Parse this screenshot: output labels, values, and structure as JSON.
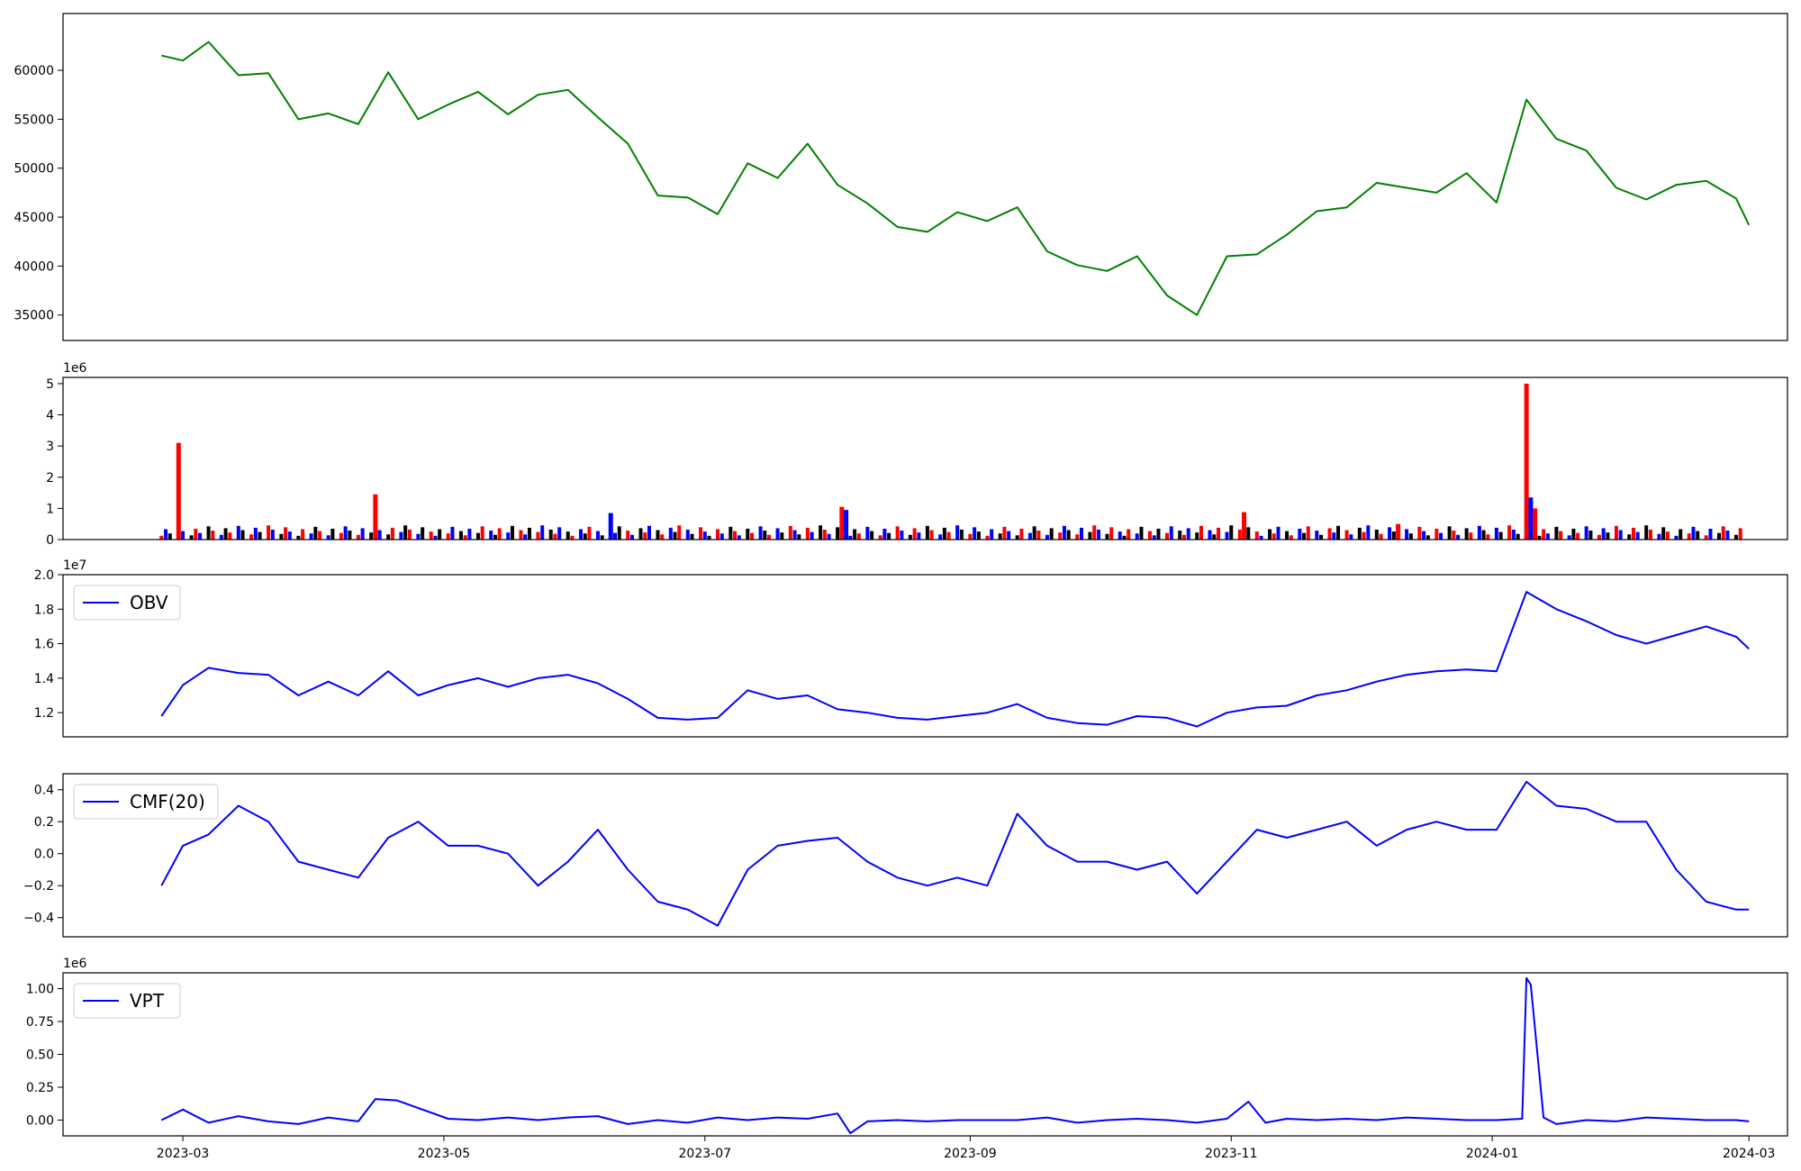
{
  "chart_data": [
    {
      "type": "line",
      "panel": "price",
      "color": "#008000",
      "yticks": [
        35000,
        40000,
        45000,
        50000,
        55000,
        60000
      ],
      "ylim": [
        32400,
        65800
      ],
      "xlim": [
        "2023-02-01",
        "2024-03-10"
      ],
      "x": [
        "2023-02-24",
        "2023-03-01",
        "2023-03-07",
        "2023-03-14",
        "2023-03-21",
        "2023-03-28",
        "2023-04-04",
        "2023-04-11",
        "2023-04-18",
        "2023-04-25",
        "2023-05-02",
        "2023-05-09",
        "2023-05-16",
        "2023-05-23",
        "2023-05-30",
        "2023-06-06",
        "2023-06-13",
        "2023-06-20",
        "2023-06-27",
        "2023-07-04",
        "2023-07-11",
        "2023-07-18",
        "2023-07-25",
        "2023-08-01",
        "2023-08-08",
        "2023-08-15",
        "2023-08-22",
        "2023-08-29",
        "2023-09-05",
        "2023-09-12",
        "2023-09-19",
        "2023-09-26",
        "2023-10-03",
        "2023-10-10",
        "2023-10-17",
        "2023-10-24",
        "2023-10-31",
        "2023-11-07",
        "2023-11-14",
        "2023-11-21",
        "2023-11-28",
        "2023-12-05",
        "2023-12-12",
        "2023-12-19",
        "2023-12-26",
        "2024-01-02",
        "2024-01-09",
        "2024-01-16",
        "2024-01-23",
        "2024-01-30",
        "2024-02-06",
        "2024-02-13",
        "2024-02-20",
        "2024-02-27",
        "2024-03-01"
      ],
      "values": [
        61500,
        61000,
        62900,
        59500,
        59700,
        55000,
        55600,
        54500,
        59800,
        55000,
        56500,
        57800,
        55500,
        57500,
        58000,
        55200,
        52500,
        47200,
        47000,
        45300,
        50500,
        49000,
        52500,
        48300,
        46400,
        44000,
        43500,
        45500,
        44600,
        46000,
        41500,
        40100,
        39500,
        41000,
        37000,
        35000,
        41000,
        41200,
        43200,
        45600,
        46000,
        48500,
        48000,
        47500,
        49500,
        46500,
        57000,
        53000,
        51800,
        48000,
        46800,
        48300,
        48700,
        46900,
        44200
      ]
    },
    {
      "type": "bar",
      "panel": "volume",
      "scale_label": "1e6",
      "colors": [
        "#ff0000",
        "#0000ff",
        "#000000"
      ],
      "yticks": [
        0,
        1,
        2,
        3,
        4,
        5
      ],
      "ylim": [
        0,
        5.2
      ],
      "note_values_in_millions": true,
      "x": [
        "2023-02-28",
        "2023-04-15",
        "2023-06-09",
        "2023-08-02",
        "2023-08-03",
        "2023-11-04",
        "2023-12-10",
        "2024-01-09",
        "2024-01-10",
        "2024-01-11"
      ],
      "values": [
        3.1,
        1.45,
        0.85,
        1.05,
        0.95,
        0.88,
        0.5,
        5.0,
        1.35,
        1.0
      ],
      "bar_colors": [
        "#ff0000",
        "#ff0000",
        "#0000ff",
        "#ff0000",
        "#0000ff",
        "#ff0000",
        "#ff0000",
        "#ff0000",
        "#0000ff",
        "#ff0000"
      ]
    },
    {
      "type": "line",
      "panel": "obv",
      "scale_label": "1e7",
      "legend": "OBV",
      "color": "#0000ff",
      "yticks": [
        1.2,
        1.4,
        1.6,
        1.8,
        2.0
      ],
      "yticklabels": [
        "1.2",
        "1.4",
        "1.6",
        "1.8",
        "2.0"
      ],
      "ylim": [
        1.06,
        2.0
      ],
      "x": [
        "2023-02-24",
        "2023-03-01",
        "2023-03-07",
        "2023-03-14",
        "2023-03-21",
        "2023-03-28",
        "2023-04-04",
        "2023-04-11",
        "2023-04-18",
        "2023-04-25",
        "2023-05-02",
        "2023-05-09",
        "2023-05-16",
        "2023-05-23",
        "2023-05-30",
        "2023-06-06",
        "2023-06-13",
        "2023-06-20",
        "2023-06-27",
        "2023-07-04",
        "2023-07-11",
        "2023-07-18",
        "2023-07-25",
        "2023-08-01",
        "2023-08-08",
        "2023-08-15",
        "2023-08-22",
        "2023-08-29",
        "2023-09-05",
        "2023-09-12",
        "2023-09-19",
        "2023-09-26",
        "2023-10-03",
        "2023-10-10",
        "2023-10-17",
        "2023-10-24",
        "2023-10-31",
        "2023-11-07",
        "2023-11-14",
        "2023-11-21",
        "2023-11-28",
        "2023-12-05",
        "2023-12-12",
        "2023-12-19",
        "2023-12-26",
        "2024-01-02",
        "2024-01-09",
        "2024-01-16",
        "2024-01-23",
        "2024-01-30",
        "2024-02-06",
        "2024-02-13",
        "2024-02-20",
        "2024-02-27",
        "2024-03-01"
      ],
      "values": [
        1.18,
        1.36,
        1.46,
        1.43,
        1.42,
        1.3,
        1.38,
        1.3,
        1.44,
        1.3,
        1.36,
        1.4,
        1.35,
        1.4,
        1.42,
        1.37,
        1.28,
        1.17,
        1.16,
        1.17,
        1.33,
        1.28,
        1.3,
        1.22,
        1.2,
        1.17,
        1.16,
        1.18,
        1.2,
        1.25,
        1.17,
        1.14,
        1.13,
        1.18,
        1.17,
        1.12,
        1.2,
        1.23,
        1.24,
        1.3,
        1.33,
        1.38,
        1.42,
        1.44,
        1.45,
        1.44,
        1.9,
        1.8,
        1.73,
        1.65,
        1.6,
        1.65,
        1.7,
        1.64,
        1.57
      ]
    },
    {
      "type": "line",
      "panel": "cmf",
      "legend": "CMF(20)",
      "color": "#0000ff",
      "yticks": [
        -0.4,
        -0.2,
        0.0,
        0.2,
        0.4
      ],
      "yticklabels": [
        "−0.4",
        "−0.2",
        "0.0",
        "0.2",
        "0.4"
      ],
      "ylim": [
        -0.52,
        0.5
      ],
      "x": [
        "2023-02-24",
        "2023-03-01",
        "2023-03-07",
        "2023-03-14",
        "2023-03-21",
        "2023-03-28",
        "2023-04-04",
        "2023-04-11",
        "2023-04-18",
        "2023-04-25",
        "2023-05-02",
        "2023-05-09",
        "2023-05-16",
        "2023-05-23",
        "2023-05-30",
        "2023-06-06",
        "2023-06-13",
        "2023-06-20",
        "2023-06-27",
        "2023-07-04",
        "2023-07-11",
        "2023-07-18",
        "2023-07-25",
        "2023-08-01",
        "2023-08-08",
        "2023-08-15",
        "2023-08-22",
        "2023-08-29",
        "2023-09-05",
        "2023-09-12",
        "2023-09-19",
        "2023-09-26",
        "2023-10-03",
        "2023-10-10",
        "2023-10-17",
        "2023-10-24",
        "2023-10-31",
        "2023-11-07",
        "2023-11-14",
        "2023-11-21",
        "2023-11-28",
        "2023-12-05",
        "2023-12-12",
        "2023-12-19",
        "2023-12-26",
        "2024-01-02",
        "2024-01-09",
        "2024-01-16",
        "2024-01-23",
        "2024-01-30",
        "2024-02-06",
        "2024-02-13",
        "2024-02-20",
        "2024-02-27",
        "2024-03-01"
      ],
      "values": [
        -0.2,
        0.05,
        0.12,
        0.3,
        0.2,
        -0.05,
        -0.1,
        -0.15,
        0.1,
        0.2,
        0.05,
        0.05,
        0.0,
        -0.2,
        -0.05,
        0.15,
        -0.1,
        -0.3,
        -0.35,
        -0.45,
        -0.1,
        0.05,
        0.08,
        0.1,
        -0.05,
        -0.15,
        -0.2,
        -0.15,
        -0.2,
        0.25,
        0.05,
        -0.05,
        -0.05,
        -0.1,
        -0.05,
        -0.25,
        -0.05,
        0.15,
        0.1,
        0.15,
        0.2,
        0.05,
        0.15,
        0.2,
        0.15,
        0.15,
        0.45,
        0.3,
        0.28,
        0.2,
        0.2,
        -0.1,
        -0.3,
        -0.35,
        -0.35
      ]
    },
    {
      "type": "line",
      "panel": "vpt",
      "scale_label": "1e6",
      "legend": "VPT",
      "color": "#0000ff",
      "yticks": [
        0.0,
        0.25,
        0.5,
        0.75,
        1.0
      ],
      "yticklabels": [
        "0.00",
        "0.25",
        "0.50",
        "0.75",
        "1.00"
      ],
      "ylim": [
        -0.12,
        1.12
      ],
      "xticks": [
        "2023-03-01",
        "2023-05-01",
        "2023-07-01",
        "2023-09-01",
        "2023-11-01",
        "2024-01-01",
        "2024-03-01"
      ],
      "xticklabels": [
        "2023-03",
        "2023-05",
        "2023-07",
        "2023-09",
        "2023-11",
        "2024-01",
        "2024-03"
      ],
      "x": [
        "2023-02-24",
        "2023-03-01",
        "2023-03-07",
        "2023-03-14",
        "2023-03-21",
        "2023-03-28",
        "2023-04-04",
        "2023-04-11",
        "2023-04-15",
        "2023-04-20",
        "2023-05-02",
        "2023-05-09",
        "2023-05-16",
        "2023-05-23",
        "2023-05-30",
        "2023-06-06",
        "2023-06-13",
        "2023-06-20",
        "2023-06-27",
        "2023-07-04",
        "2023-07-11",
        "2023-07-18",
        "2023-07-25",
        "2023-08-01",
        "2023-08-04",
        "2023-08-08",
        "2023-08-15",
        "2023-08-22",
        "2023-08-29",
        "2023-09-05",
        "2023-09-12",
        "2023-09-19",
        "2023-09-26",
        "2023-10-03",
        "2023-10-10",
        "2023-10-17",
        "2023-10-24",
        "2023-10-31",
        "2023-11-05",
        "2023-11-09",
        "2023-11-14",
        "2023-11-21",
        "2023-11-28",
        "2023-12-05",
        "2023-12-12",
        "2023-12-19",
        "2023-12-26",
        "2024-01-02",
        "2024-01-08",
        "2024-01-09",
        "2024-01-10",
        "2024-01-13",
        "2024-01-16",
        "2024-01-23",
        "2024-01-30",
        "2024-02-06",
        "2024-02-13",
        "2024-02-20",
        "2024-02-27",
        "2024-03-01"
      ],
      "values": [
        0.0,
        0.08,
        -0.02,
        0.03,
        -0.01,
        -0.03,
        0.02,
        -0.01,
        0.16,
        0.15,
        0.01,
        0.0,
        0.02,
        0.0,
        0.02,
        0.03,
        -0.03,
        0.0,
        -0.02,
        0.02,
        0.0,
        0.02,
        0.01,
        0.05,
        -0.1,
        -0.01,
        0.0,
        -0.01,
        0.0,
        0.0,
        0.0,
        0.02,
        -0.02,
        0.0,
        0.01,
        0.0,
        -0.02,
        0.01,
        0.14,
        -0.02,
        0.01,
        0.0,
        0.01,
        0.0,
        0.02,
        0.01,
        0.0,
        0.0,
        0.01,
        1.08,
        1.03,
        0.02,
        -0.03,
        0.0,
        -0.01,
        0.02,
        0.01,
        0.0,
        0.0,
        -0.01
      ]
    }
  ]
}
